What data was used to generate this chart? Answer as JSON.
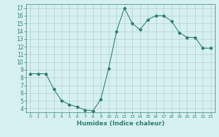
{
  "xlabel": "Humidex (Indice chaleur)",
  "ylabel": "",
  "x": [
    0,
    1,
    2,
    3,
    4,
    5,
    6,
    7,
    8,
    9,
    10,
    11,
    12,
    13,
    14,
    15,
    16,
    17,
    18,
    19,
    20,
    21,
    22,
    23
  ],
  "y": [
    8.5,
    8.5,
    8.5,
    6.5,
    5.0,
    4.5,
    4.2,
    3.8,
    3.7,
    5.2,
    9.2,
    14.0,
    17.0,
    15.0,
    14.2,
    15.5,
    16.0,
    16.0,
    15.3,
    13.8,
    13.2,
    13.2,
    11.8,
    11.8
  ],
  "line_color": "#2e7d6e",
  "marker": "D",
  "marker_size": 2,
  "background_color": "#d6f0f0",
  "grid_color": "#b0d0d0",
  "ylim": [
    3.5,
    17.5
  ],
  "xlim": [
    -0.5,
    23.5
  ],
  "yticks": [
    4,
    5,
    6,
    7,
    8,
    9,
    10,
    11,
    12,
    13,
    14,
    15,
    16,
    17
  ],
  "xticks": [
    0,
    1,
    2,
    3,
    4,
    5,
    6,
    7,
    8,
    9,
    10,
    11,
    12,
    13,
    14,
    15,
    16,
    17,
    18,
    19,
    20,
    21,
    22,
    23
  ],
  "tick_color": "#2e7d6e",
  "label_color": "#2e7d6e",
  "xlabel_fontsize": 6.5,
  "tick_fontsize_y": 5.5,
  "tick_fontsize_x": 4.5
}
